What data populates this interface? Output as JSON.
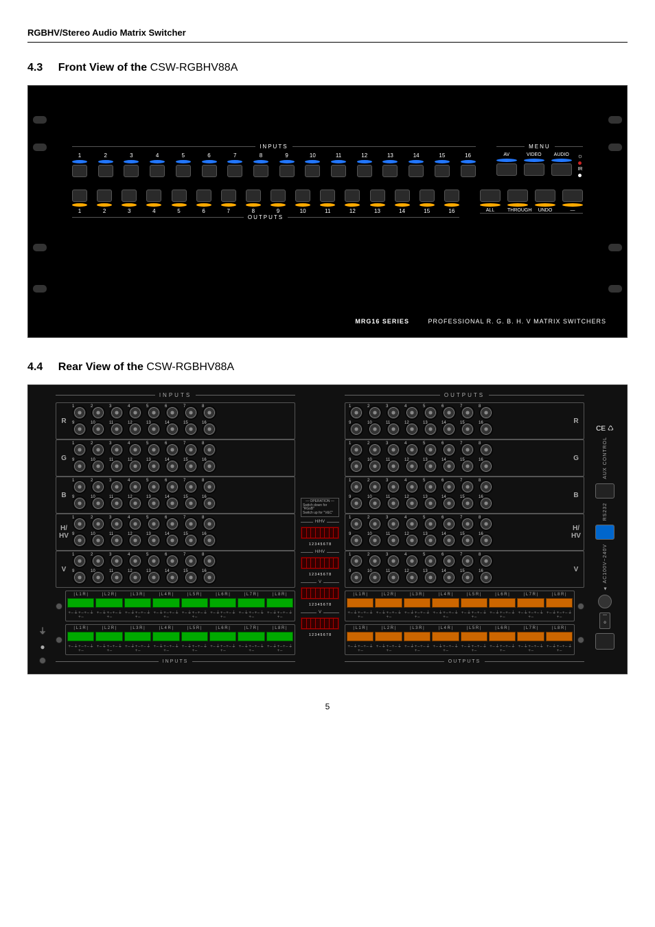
{
  "doc_header": "RGBHV/Stereo Audio Matrix Switcher",
  "section43": {
    "num": "4.3",
    "title": "Front View of the ",
    "model": "CSW-RGBHV88A"
  },
  "section44": {
    "num": "4.4",
    "title": "Rear View of the ",
    "model": "CSW-RGBHV88A"
  },
  "page_num": "5",
  "front": {
    "inputs_label": "INPUTS",
    "outputs_label": "OUTPUTS",
    "menu_label": "MENU",
    "channels": [
      "1",
      "2",
      "3",
      "4",
      "5",
      "6",
      "7",
      "8",
      "9",
      "10",
      "11",
      "12",
      "13",
      "14",
      "15",
      "16"
    ],
    "led_input_color": "#2277ff",
    "led_output_color": "#ffaa00",
    "menu_top": [
      "AV",
      "VIDEO",
      "AUDIO"
    ],
    "menu_top_led_color": "#2277ff",
    "menu_bot": [
      "ALL",
      "THROUGH",
      "UNDO",
      "—"
    ],
    "menu_bot_led_color": "#ffaa00",
    "ir_label": "IR",
    "sun": "☼",
    "ir_led_color": "#cc2222",
    "footer_series": "MRG16 SERIES",
    "footer_text": "PROFESSIONAL R. G. B. H. V MATRIX SWITCHERS"
  },
  "rear": {
    "inputs_label": "INPUTS",
    "outputs_label": "OUTPUTS",
    "rows": [
      "R",
      "G",
      "B",
      "H/HV",
      "V"
    ],
    "top_nums": [
      "1",
      "2",
      "3",
      "4",
      "5",
      "6",
      "7",
      "8"
    ],
    "bot_nums": [
      "9",
      "10",
      "11",
      "12",
      "13",
      "14",
      "15",
      "16"
    ],
    "op_title": "OPERATION",
    "op_line1": "Switch down for \"RGsB\"",
    "op_line2": "Switch up for \"V&C\"",
    "hvhv_label": "H/HV",
    "v_label": "V",
    "dip_nums": "1 2 3 4 5 6 7 8",
    "dip_on": "ON",
    "aux_label": "AUX CONTROL",
    "rs232_label": "RS232",
    "power_label": "AC100V~240V",
    "ce": "CE ♺",
    "audio_labels": [
      "L 1 R",
      "L 2 R",
      "L 3 R",
      "L 4 R",
      "L 5 R",
      "L 6 R",
      "L 7 R",
      "L 8 R"
    ],
    "pm": "+ – ⏚ + – + – ⏚ + –",
    "audio_in_label": "INPUTS",
    "audio_out_label": "OUTPUTS",
    "triangle": "▲"
  }
}
